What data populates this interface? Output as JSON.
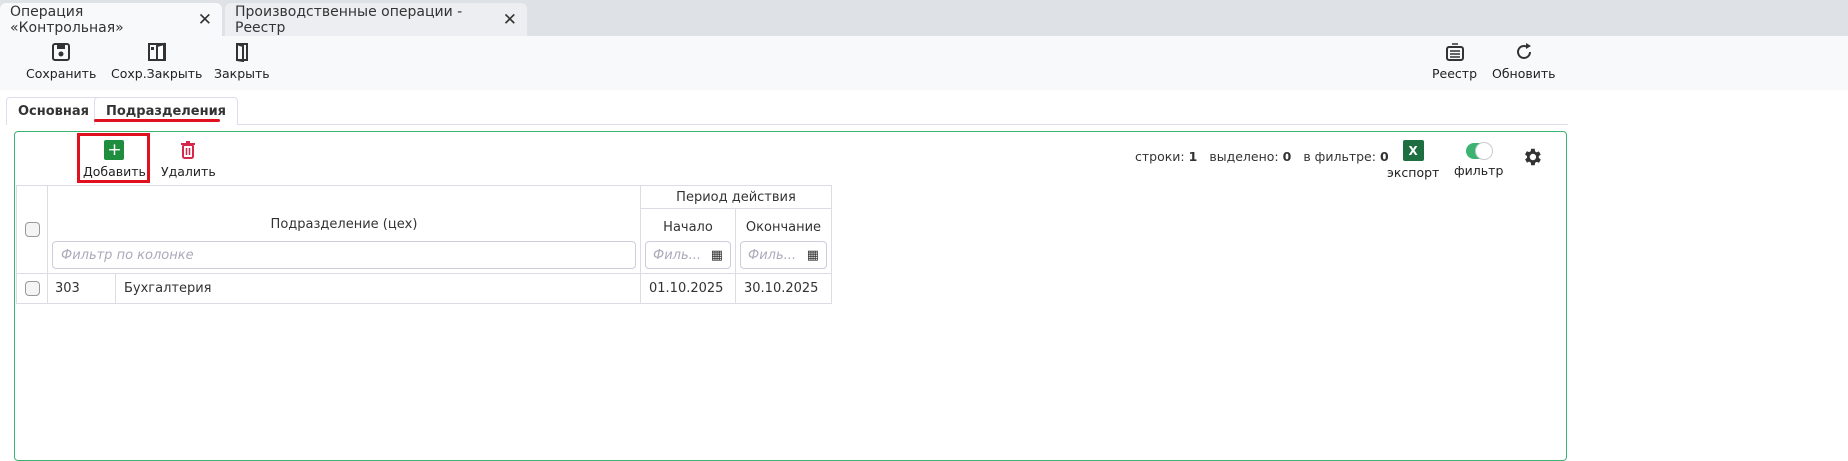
{
  "window_tabs": [
    {
      "label": "Операция «Контрольная»",
      "active": true
    },
    {
      "label": "Производственные операции - Реестр",
      "active": false
    }
  ],
  "toolbar": {
    "save": "Сохранить",
    "save_close": "Сохр.Закрыть",
    "close": "Закрыть",
    "registry": "Реестр",
    "refresh": "Обновить"
  },
  "form_tabs": [
    {
      "label": "Основная"
    },
    {
      "label": "Подразделения",
      "active": true
    }
  ],
  "grid_toolbar": {
    "add": "Добавить",
    "delete": "Удалить",
    "rows_label": "строки:",
    "rows": "1",
    "selected_label": "выделено:",
    "selected": "0",
    "filtered_label": "в фильтре:",
    "filtered": "0",
    "export": "экспорт",
    "filter": "фильтр",
    "filter_on": true
  },
  "table": {
    "group_header": "Период действия",
    "col_unit": "Подразделение (цех)",
    "col_start": "Начало",
    "col_end": "Окончание",
    "filter_placeholder": "Фильтр по колонке",
    "date_filter_placeholder": "Филь...",
    "rows": [
      {
        "code": "303",
        "name": "Бухгалтерия",
        "start": "01.10.2025",
        "end": "30.10.2025"
      }
    ]
  },
  "colors": {
    "accent_green": "#1e8e3e",
    "highlight_red": "#e0101e",
    "delete_red": "#d6284b",
    "panel_border": "#3cb371"
  }
}
